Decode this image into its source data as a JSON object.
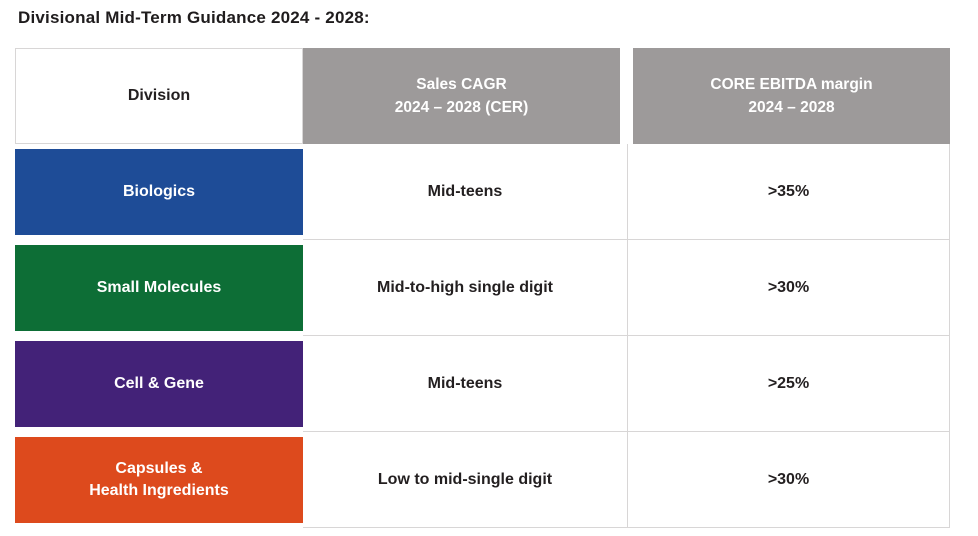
{
  "title": "Divisional Mid-Term Guidance 2024 - 2028:",
  "colors": {
    "header_gray": "#9D9A9A",
    "border_gray": "#D8D6D6",
    "text_dark": "#231F20",
    "biologics_blue": "#1E4C97",
    "small_molecules_green": "#0D6E36",
    "cell_gene_purple": "#432278",
    "capsules_orange": "#DD4A1D"
  },
  "table": {
    "header": {
      "division": "Division",
      "sales_cagr": "Sales CAGR\n2024 – 2028 (CER)",
      "core_ebitda": "CORE EBITDA margin\n2024 – 2028"
    },
    "rows": [
      {
        "division": "Biologics",
        "color": "#1E4C97",
        "sales_cagr": "Mid-teens",
        "core_ebitda_margin": ">35%"
      },
      {
        "division": "Small Molecules",
        "color": "#0D6E36",
        "sales_cagr": "Mid-to-high single digit",
        "core_ebitda_margin": ">30%"
      },
      {
        "division": "Cell & Gene",
        "color": "#432278",
        "sales_cagr": "Mid-teens",
        "core_ebitda_margin": ">25%"
      },
      {
        "division": "Capsules &\nHealth Ingredients",
        "color": "#DD4A1D",
        "sales_cagr": "Low to mid-single digit",
        "core_ebitda_margin": ">30%"
      }
    ]
  }
}
